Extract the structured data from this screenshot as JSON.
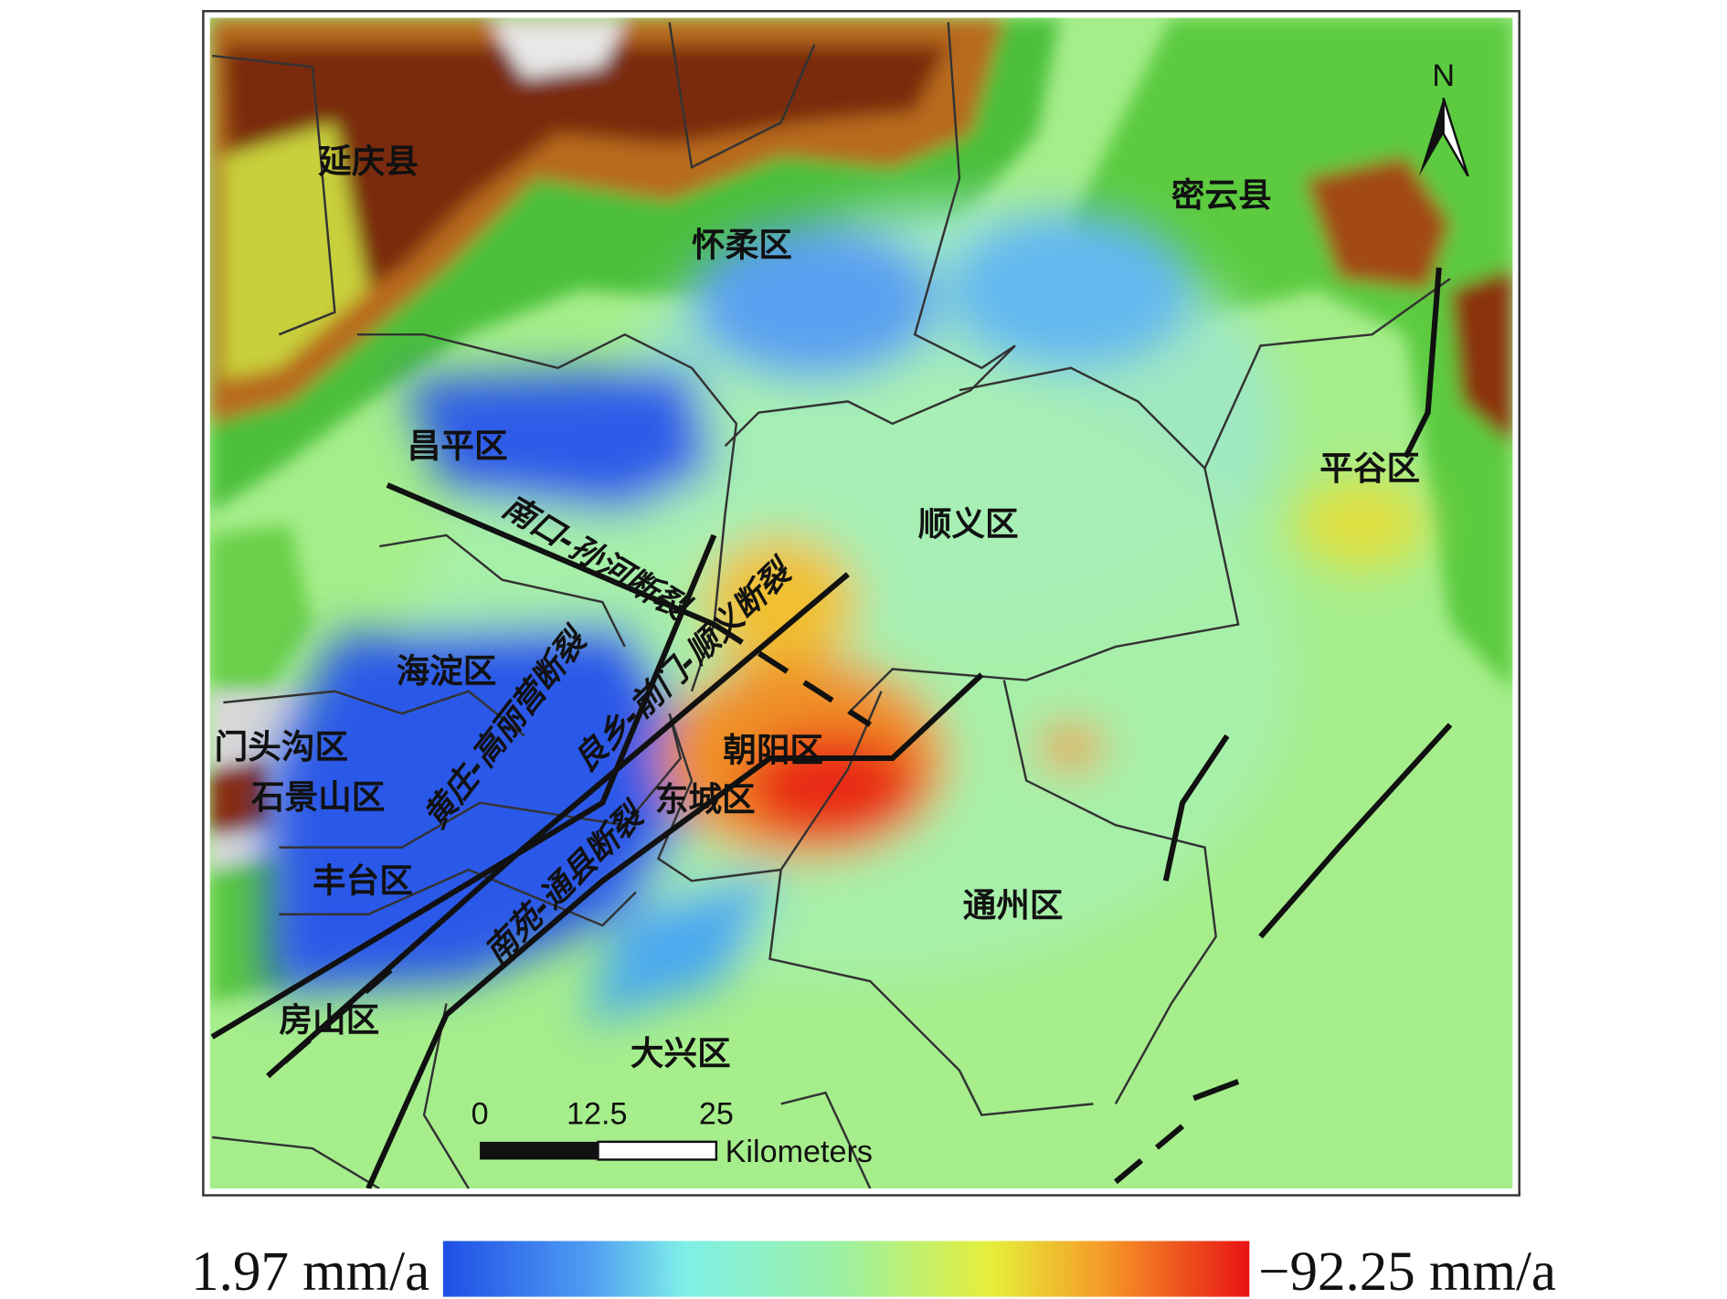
{
  "map": {
    "districts": [
      "延庆县",
      "怀柔区",
      "密云县",
      "昌平区",
      "平谷区",
      "顺义区",
      "海淀区",
      "门头沟区",
      "石景山区",
      "朝阳区",
      "东城区",
      "丰台区",
      "通州区",
      "房山区",
      "大兴区"
    ],
    "faults": [
      "南口-孙河断裂",
      "黄庄-高丽营断裂",
      "良乡-前门-顺义断裂",
      "南苑-通县断裂"
    ],
    "north": "N",
    "scale_bar": {
      "ticks": [
        "0",
        "12.5",
        "25"
      ],
      "unit": "Kilometers"
    },
    "legend": {
      "min_label": "1.97 mm/a",
      "max_label": "−92.25 mm/a"
    }
  }
}
